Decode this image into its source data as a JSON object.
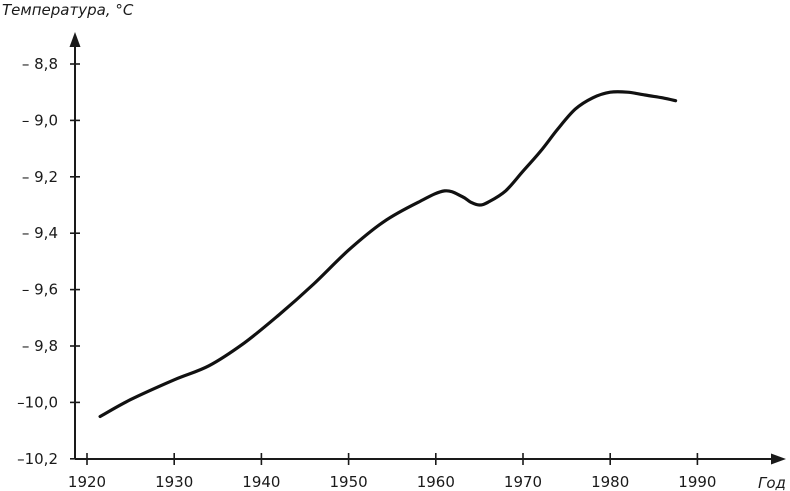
{
  "chart_data": {
    "type": "line",
    "ylabel": "Температура, °C",
    "xlabel": "Год",
    "x_ticks": [
      1920,
      1930,
      1940,
      1950,
      1960,
      1970,
      1980,
      1990
    ],
    "x_tick_labels": [
      "1920",
      "1930",
      "1940",
      "1950",
      "1960",
      "1970",
      "1980",
      "1990"
    ],
    "y_ticks": [
      -8.8,
      -9.0,
      -9.2,
      -9.4,
      -9.6,
      -9.8,
      -10.0,
      -10.2
    ],
    "y_tick_labels": [
      "– 8,8",
      "– 9,0",
      "– 9,2",
      "– 9,4",
      "– 9,6",
      "– 9,8",
      "–10,0",
      "–10,2"
    ],
    "xlim": [
      1920,
      1990
    ],
    "ylim": [
      -10.2,
      -8.8
    ],
    "grid": false,
    "series": [
      {
        "x": [
          1921.5,
          1925,
          1930,
          1934,
          1938,
          1942,
          1946,
          1950,
          1954,
          1958,
          1961,
          1963,
          1964,
          1965,
          1966,
          1968,
          1970,
          1972,
          1974,
          1976,
          1978,
          1980,
          1982,
          1984,
          1986,
          1987.5
        ],
        "y": [
          -10.05,
          -9.99,
          -9.92,
          -9.87,
          -9.79,
          -9.69,
          -9.58,
          -9.46,
          -9.36,
          -9.29,
          -9.25,
          -9.27,
          -9.29,
          -9.3,
          -9.29,
          -9.25,
          -9.18,
          -9.11,
          -9.03,
          -8.96,
          -8.92,
          -8.9,
          -8.9,
          -8.91,
          -8.92,
          -8.93
        ],
        "color": "#111111"
      }
    ]
  }
}
